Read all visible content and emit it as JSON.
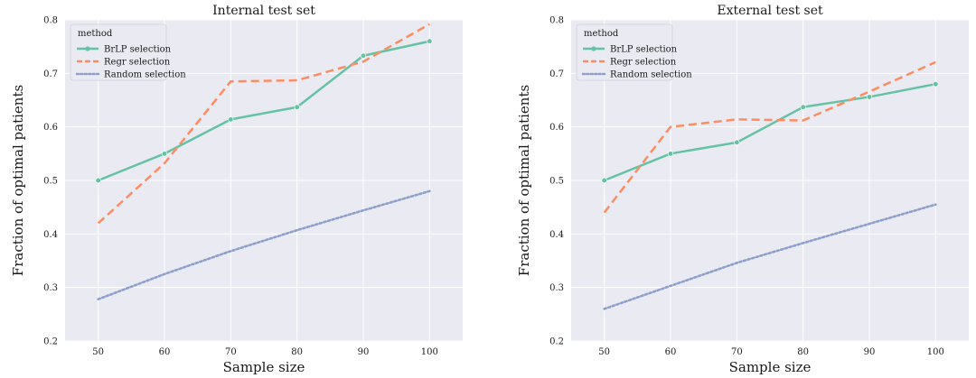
{
  "chart_data": [
    {
      "type": "line",
      "title": "Internal test set",
      "xlabel": "Sample size",
      "ylabel": "Fraction of optimal patients",
      "x": [
        50,
        60,
        70,
        80,
        90,
        100
      ],
      "xlim": [
        45,
        105
      ],
      "ylim": [
        0.2,
        0.8
      ],
      "xticks": [
        50,
        60,
        70,
        80,
        90,
        100
      ],
      "yticks": [
        0.2,
        0.3,
        0.4,
        0.5,
        0.6,
        0.7,
        0.8
      ],
      "grid": true,
      "legend": {
        "title": "method",
        "placement": "top-left"
      },
      "series": [
        {
          "name": "BrLP selection",
          "style": "solid",
          "markers": true,
          "color": "#66c2a5",
          "values": [
            0.5,
            0.55,
            0.614,
            0.637,
            0.733,
            0.76
          ]
        },
        {
          "name": "Regr selection",
          "style": "dashed",
          "markers": false,
          "color": "#fc8d62",
          "values": [
            0.42,
            0.532,
            0.685,
            0.687,
            0.722,
            0.792
          ]
        },
        {
          "name": "Random selection",
          "style": "dotted",
          "markers": false,
          "color": "#8da0cb",
          "values": [
            0.278,
            0.325,
            0.368,
            0.407,
            0.444,
            0.48
          ]
        }
      ]
    },
    {
      "type": "line",
      "title": "External test set",
      "xlabel": "Sample size",
      "ylabel": "Fraction of optimal patients",
      "x": [
        50,
        60,
        70,
        80,
        90,
        100
      ],
      "xlim": [
        45,
        105
      ],
      "ylim": [
        0.2,
        0.8
      ],
      "xticks": [
        50,
        60,
        70,
        80,
        90,
        100
      ],
      "yticks": [
        0.2,
        0.3,
        0.4,
        0.5,
        0.6,
        0.7,
        0.8
      ],
      "grid": true,
      "legend": {
        "title": "method",
        "placement": "top-left"
      },
      "series": [
        {
          "name": "BrLP selection",
          "style": "solid",
          "markers": true,
          "color": "#66c2a5",
          "values": [
            0.5,
            0.55,
            0.571,
            0.637,
            0.656,
            0.68
          ]
        },
        {
          "name": "Regr selection",
          "style": "dashed",
          "markers": false,
          "color": "#fc8d62",
          "values": [
            0.44,
            0.6,
            0.614,
            0.612,
            0.666,
            0.721
          ]
        },
        {
          "name": "Random selection",
          "style": "dotted",
          "markers": false,
          "color": "#8da0cb",
          "values": [
            0.26,
            0.303,
            0.346,
            0.383,
            0.419,
            0.455
          ]
        }
      ]
    }
  ],
  "style": {
    "plot_background": "#eaeaf2",
    "grid_color": "#ffffff"
  }
}
